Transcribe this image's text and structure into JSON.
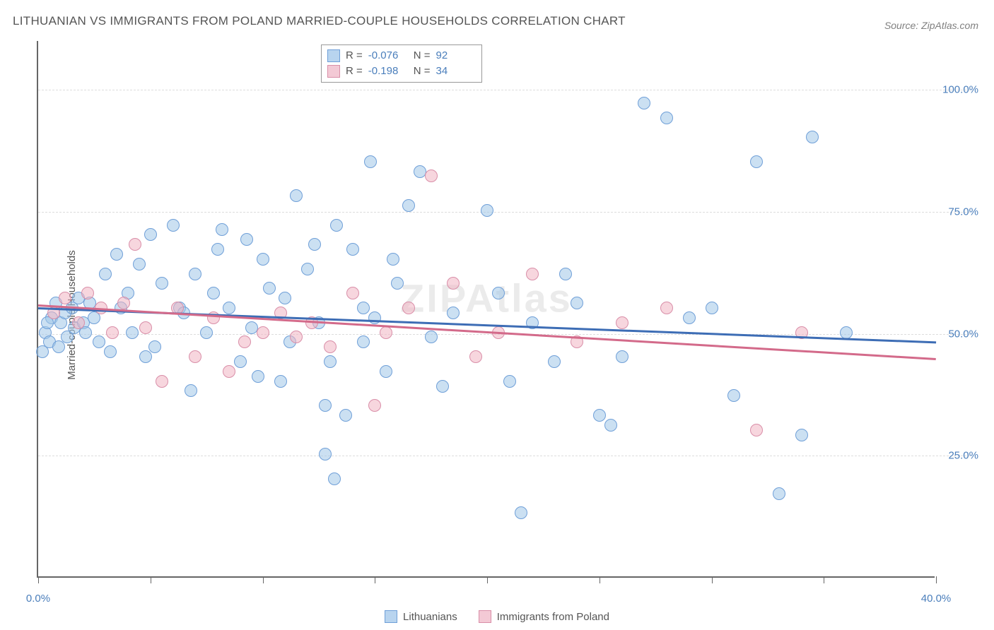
{
  "title": "LITHUANIAN VS IMMIGRANTS FROM POLAND MARRIED-COUPLE HOUSEHOLDS CORRELATION CHART",
  "source": "Source: ZipAtlas.com",
  "y_axis_label": "Married-couple Households",
  "watermark": "ZIPAtlas",
  "chart": {
    "type": "scatter",
    "xlim": [
      0,
      40
    ],
    "ylim": [
      0,
      110
    ],
    "x_ticks": [
      0,
      5,
      10,
      15,
      20,
      25,
      30,
      35,
      40
    ],
    "x_tick_labels": {
      "0": "0.0%",
      "40": "40.0%"
    },
    "y_ticks": [
      25,
      50,
      75,
      100
    ],
    "y_tick_labels": [
      "25.0%",
      "50.0%",
      "75.0%",
      "100.0%"
    ],
    "grid_color": "#dddddd",
    "axis_color": "#666666",
    "background_color": "#ffffff",
    "marker_radius": 9,
    "marker_border_width": 1.2,
    "trend_line_width": 2.5,
    "series": [
      {
        "name": "Lithuanians",
        "fill_color": "rgba(160,198,232,0.55)",
        "stroke_color": "#6f9fd8",
        "trend_color": "#3d6db5",
        "legend_swatch_fill": "#b8d4ef",
        "legend_swatch_stroke": "#6f9fd8",
        "R": "-0.076",
        "N": "92",
        "trend": {
          "y_at_x0": 55.5,
          "y_at_xmax": 48.5
        },
        "points": [
          [
            0.3,
            50
          ],
          [
            0.5,
            48
          ],
          [
            0.6,
            53
          ],
          [
            0.8,
            56
          ],
          [
            0.9,
            47
          ],
          [
            1.0,
            52
          ],
          [
            1.2,
            54
          ],
          [
            1.3,
            49
          ],
          [
            1.5,
            55
          ],
          [
            1.6,
            51
          ],
          [
            1.8,
            57
          ],
          [
            2.0,
            52
          ],
          [
            2.1,
            50
          ],
          [
            2.3,
            56
          ],
          [
            2.5,
            53
          ],
          [
            2.7,
            48
          ],
          [
            3.0,
            62
          ],
          [
            3.2,
            46
          ],
          [
            3.5,
            66
          ],
          [
            3.7,
            55
          ],
          [
            4.0,
            58
          ],
          [
            4.2,
            50
          ],
          [
            4.5,
            64
          ],
          [
            5.0,
            70
          ],
          [
            5.2,
            47
          ],
          [
            5.5,
            60
          ],
          [
            6.0,
            72
          ],
          [
            6.3,
            55
          ],
          [
            6.8,
            38
          ],
          [
            7.0,
            62
          ],
          [
            7.5,
            50
          ],
          [
            8.0,
            67
          ],
          [
            8.2,
            71
          ],
          [
            8.5,
            55
          ],
          [
            9.0,
            44
          ],
          [
            9.3,
            69
          ],
          [
            9.8,
            41
          ],
          [
            10.0,
            65
          ],
          [
            10.3,
            59
          ],
          [
            10.8,
            40
          ],
          [
            11.2,
            48
          ],
          [
            11.5,
            78
          ],
          [
            12.0,
            63
          ],
          [
            12.3,
            68
          ],
          [
            12.8,
            35
          ],
          [
            13.0,
            44
          ],
          [
            13.3,
            72
          ],
          [
            13.7,
            33
          ],
          [
            14.0,
            67
          ],
          [
            14.5,
            55
          ],
          [
            12.8,
            25
          ],
          [
            13.2,
            20
          ],
          [
            14.8,
            85
          ],
          [
            15.0,
            53
          ],
          [
            15.5,
            42
          ],
          [
            16.0,
            60
          ],
          [
            16.5,
            76
          ],
          [
            17.0,
            83
          ],
          [
            17.5,
            49
          ],
          [
            18.0,
            39
          ],
          [
            18.5,
            54
          ],
          [
            14.5,
            48
          ],
          [
            15.8,
            65
          ],
          [
            20.0,
            75
          ],
          [
            20.5,
            58
          ],
          [
            21.0,
            40
          ],
          [
            21.5,
            13
          ],
          [
            22.0,
            52
          ],
          [
            23.0,
            44
          ],
          [
            23.5,
            62
          ],
          [
            24.0,
            56
          ],
          [
            25.0,
            33
          ],
          [
            25.5,
            31
          ],
          [
            26.0,
            45
          ],
          [
            27.0,
            97
          ],
          [
            28.0,
            94
          ],
          [
            29.0,
            53
          ],
          [
            30.0,
            55
          ],
          [
            31.0,
            37
          ],
          [
            32.0,
            85
          ],
          [
            33.0,
            17
          ],
          [
            34.0,
            29
          ],
          [
            34.5,
            90
          ],
          [
            36.0,
            50
          ],
          [
            4.8,
            45
          ],
          [
            6.5,
            54
          ],
          [
            7.8,
            58
          ],
          [
            9.5,
            51
          ],
          [
            11.0,
            57
          ],
          [
            12.5,
            52
          ],
          [
            0.2,
            46
          ],
          [
            0.4,
            52
          ]
        ]
      },
      {
        "name": "Immigrants from Poland",
        "fill_color": "rgba(240,180,195,0.55)",
        "stroke_color": "#d98ea8",
        "trend_color": "#d36a8a",
        "legend_swatch_fill": "#f3c9d5",
        "legend_swatch_stroke": "#d98ea8",
        "R": "-0.198",
        "N": "34",
        "trend": {
          "y_at_x0": 56.0,
          "y_at_xmax": 45.0
        },
        "points": [
          [
            0.7,
            54
          ],
          [
            1.2,
            57
          ],
          [
            1.8,
            52
          ],
          [
            2.2,
            58
          ],
          [
            2.8,
            55
          ],
          [
            3.3,
            50
          ],
          [
            3.8,
            56
          ],
          [
            4.3,
            68
          ],
          [
            4.8,
            51
          ],
          [
            5.5,
            40
          ],
          [
            6.2,
            55
          ],
          [
            7.0,
            45
          ],
          [
            7.8,
            53
          ],
          [
            8.5,
            42
          ],
          [
            9.2,
            48
          ],
          [
            10.0,
            50
          ],
          [
            10.8,
            54
          ],
          [
            11.5,
            49
          ],
          [
            12.2,
            52
          ],
          [
            13.0,
            47
          ],
          [
            14.0,
            58
          ],
          [
            15.0,
            35
          ],
          [
            15.5,
            50
          ],
          [
            16.5,
            55
          ],
          [
            17.5,
            82
          ],
          [
            18.5,
            60
          ],
          [
            19.5,
            45
          ],
          [
            20.5,
            50
          ],
          [
            22.0,
            62
          ],
          [
            24.0,
            48
          ],
          [
            26.0,
            52
          ],
          [
            28.0,
            55
          ],
          [
            32.0,
            30
          ],
          [
            34.0,
            50
          ]
        ]
      }
    ]
  },
  "corr_legend": {
    "R_label": "R =",
    "N_label": "N ="
  },
  "bottom_legend": {
    "items": [
      "Lithuanians",
      "Immigrants from Poland"
    ]
  }
}
